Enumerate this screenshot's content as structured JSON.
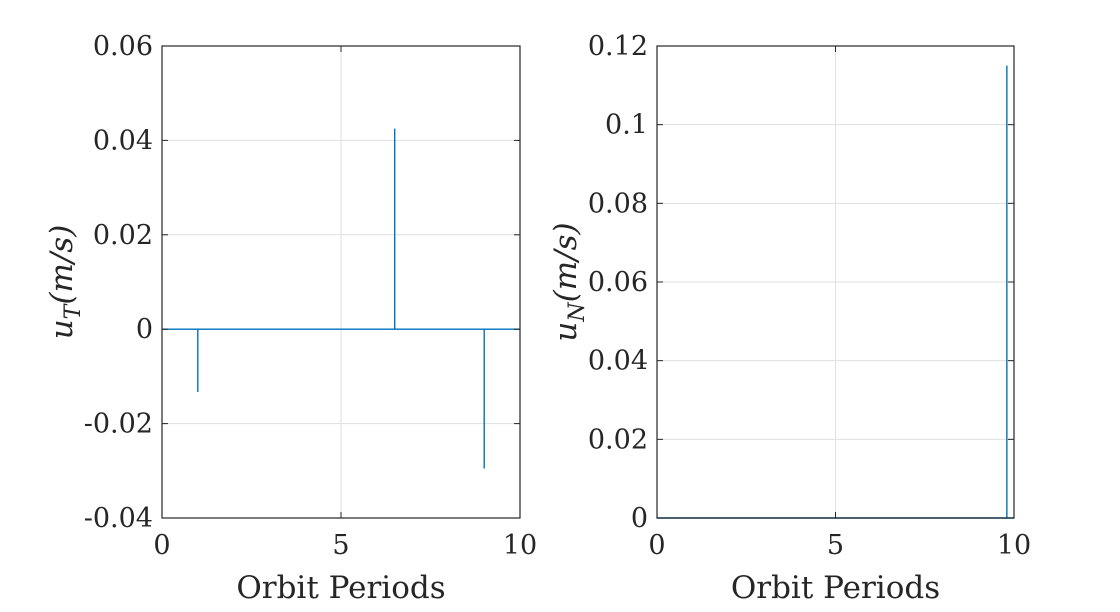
{
  "chart_data": [
    {
      "type": "line",
      "xlabel": "Orbit Periods",
      "ylabel": {
        "var": "u",
        "sub": "T",
        "unit": "(m/s)"
      },
      "xlim": [
        0,
        10
      ],
      "ylim": [
        -0.04,
        0.06
      ],
      "xticks": [
        0,
        5,
        10
      ],
      "xtick_labels": [
        "0",
        "5",
        "10"
      ],
      "yticks": [
        -0.04,
        -0.02,
        0,
        0.02,
        0.04,
        0.06
      ],
      "ytick_labels": [
        "-0.04",
        "-0.02",
        "0",
        "0.02",
        "0.04",
        "0.06"
      ],
      "grid": true,
      "color": "#0072BD",
      "series": [
        {
          "x": [
            0,
            1.0,
            1.0,
            1.0,
            6.5,
            6.5,
            6.5,
            9.0,
            9.0,
            9.0,
            10
          ],
          "y": [
            0,
            0,
            -0.0133,
            0,
            0,
            0.0425,
            0,
            0,
            -0.0295,
            0,
            0
          ]
        }
      ]
    },
    {
      "type": "line",
      "xlabel": "Orbit Periods",
      "ylabel": {
        "var": "u",
        "sub": "N",
        "unit": "(m/s)"
      },
      "xlim": [
        0,
        10
      ],
      "ylim": [
        0,
        0.12
      ],
      "xticks": [
        0,
        5,
        10
      ],
      "xtick_labels": [
        "0",
        "5",
        "10"
      ],
      "yticks": [
        0,
        0.02,
        0.04,
        0.06,
        0.08,
        0.1,
        0.12
      ],
      "ytick_labels": [
        "0",
        "0.02",
        "0.04",
        "0.06",
        "0.08",
        "0.1",
        "0.12"
      ],
      "grid": true,
      "color": "#0072BD",
      "series": [
        {
          "x": [
            0,
            9.8,
            9.8,
            9.8,
            10
          ],
          "y": [
            0,
            0,
            0.115,
            0,
            0
          ]
        }
      ]
    }
  ]
}
